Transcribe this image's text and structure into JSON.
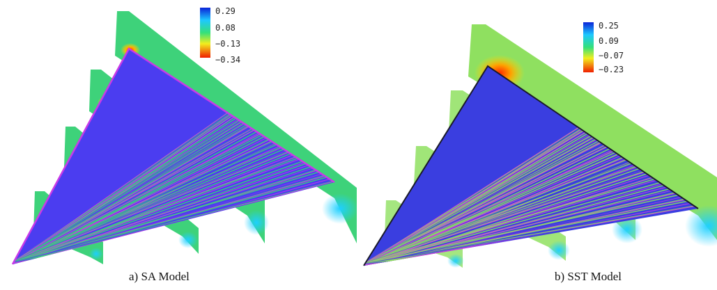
{
  "panels": [
    {
      "caption": "a) SA Model",
      "colorbar": {
        "ticks": [
          "0.29",
          "0.08",
          "−0.13",
          "−0.34"
        ]
      },
      "colors": {
        "field": "#3ed27a",
        "streak_a": "#4b3df0",
        "streak_b": "#c93ae8",
        "suction": "#ff3a00"
      }
    },
    {
      "caption": "b) SST Model",
      "colorbar": {
        "ticks": [
          "0.25",
          "0.09",
          "−0.07",
          "−0.23"
        ]
      },
      "colors": {
        "field": "#8fe060",
        "streak_a": "#3a3ee0",
        "streak_b": "#d040e0",
        "suction": "#ff3a00"
      }
    }
  ]
}
